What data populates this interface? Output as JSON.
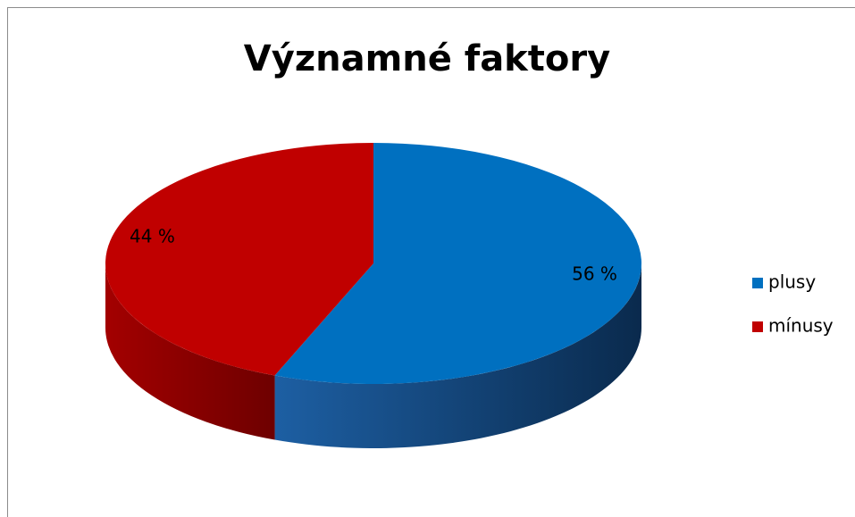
{
  "chart_data": {
    "type": "pie3d",
    "title": "Významné faktory",
    "categories": [
      "plusy",
      "mínusy"
    ],
    "values": [
      56,
      44
    ],
    "value_labels": [
      "56 %",
      "44 %"
    ],
    "colors": [
      "#0070c0",
      "#c00000"
    ],
    "legend": "right"
  }
}
